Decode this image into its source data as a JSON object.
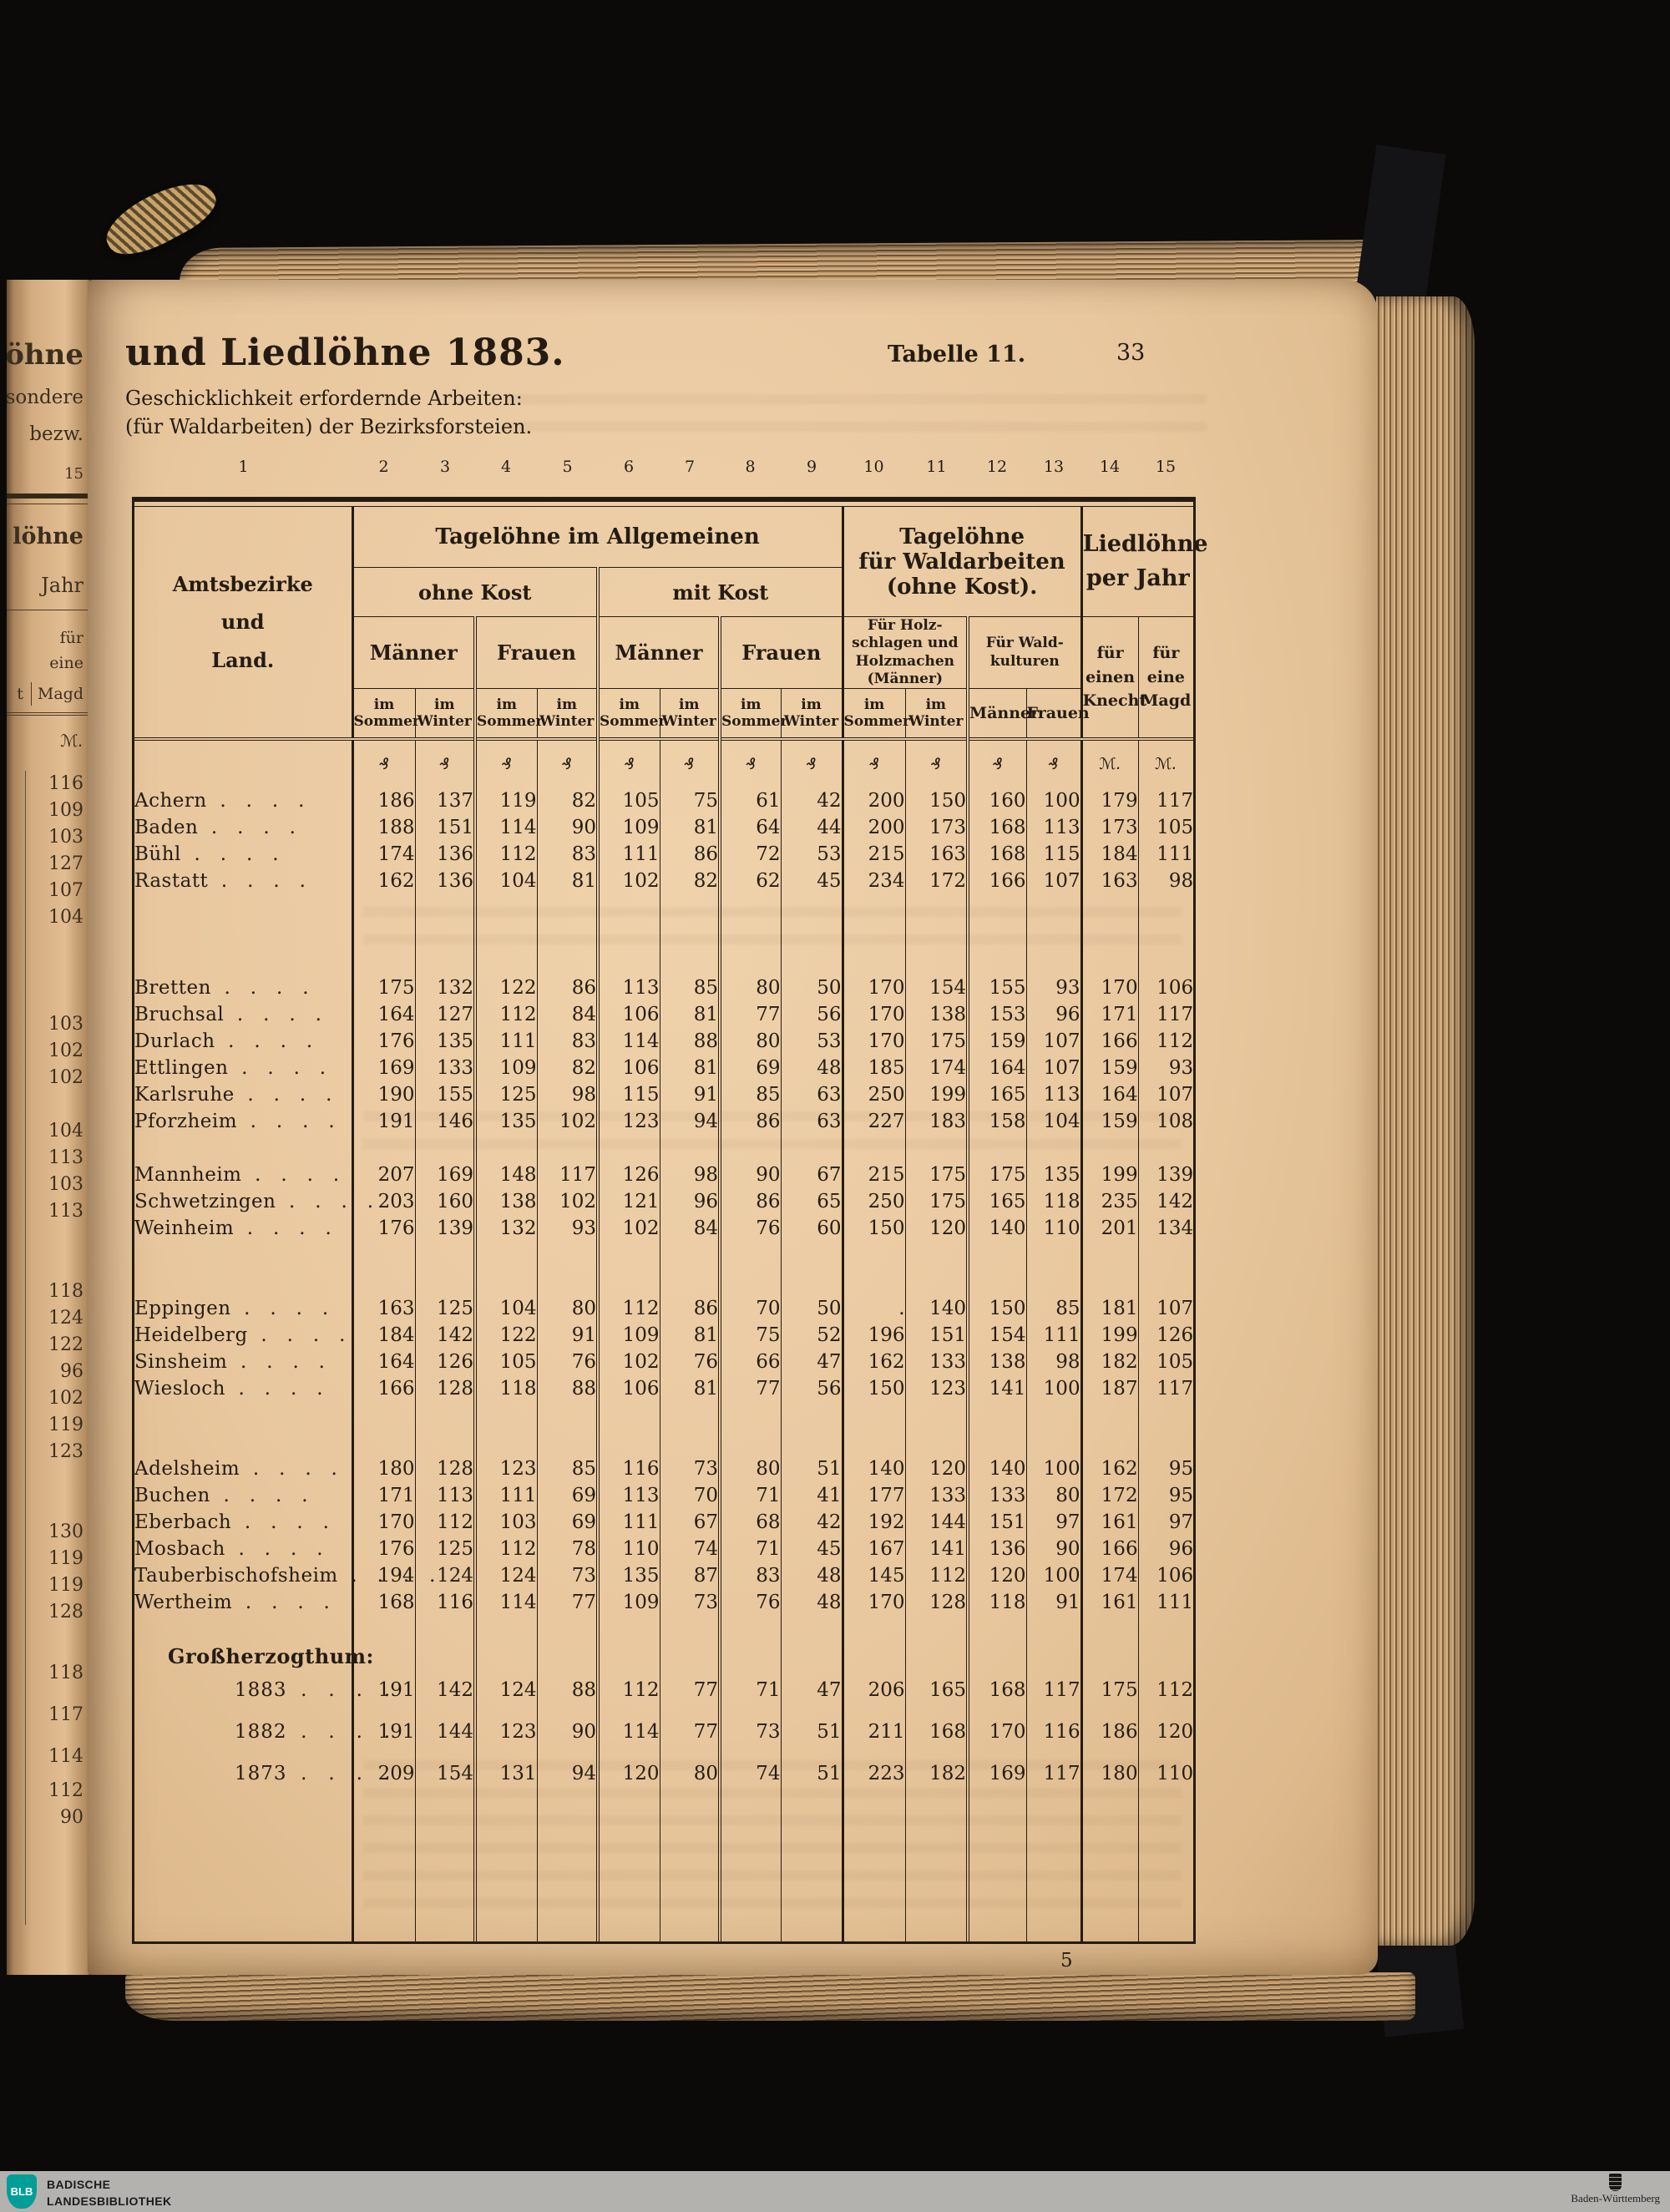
{
  "page": {
    "title": "und Liedlöhne 1883.",
    "subtitle_line1": "Geschicklichkeit erfordernde Arbeiten:",
    "subtitle_line2": "(für Waldarbeiten) der Bezirksforsteien.",
    "table_caption": "Tabelle 11.",
    "page_number": "33",
    "sheet_signature": "5"
  },
  "left_page_fragments": {
    "title_fragment": "elöhne",
    "frag_sondere": "sondere",
    "frag_bezw": "bezw.",
    "col_number": "15",
    "frag_loehne": "löhne",
    "frag_jahr": "Jahr",
    "frag_fuer": "für",
    "frag_eine": "eine",
    "frag_t": "t",
    "frag_magd": "Magd",
    "unit": "ℳ."
  },
  "table": {
    "col_numbers": [
      "1",
      "2",
      "3",
      "4",
      "5",
      "6",
      "7",
      "8",
      "9",
      "10",
      "11",
      "12",
      "13",
      "14",
      "15"
    ],
    "header": {
      "amtsbezirke": "Amtsbezirke\nund\nLand.",
      "tageloehne_allgemein": "Tagelöhne im Allgemeinen",
      "ohne_kost": "ohne Kost",
      "mit_kost": "mit Kost",
      "maenner": "Männer",
      "frauen": "Frauen",
      "im_sommer": "im\nSommer",
      "im_winter": "im\nWinter",
      "tageloehne_wald": "Tagelöhne\nfür Waldarbeiten\n(ohne Kost).",
      "holzschlagen": "Für Holz-\nschlagen und\nHolzmachen\n(Männer)",
      "waldkulturen": "Für Wald-\nkulturen",
      "liedloehne": "Liedlöhne\nper Jahr",
      "knecht": "für\neinen\nKnecht",
      "magd": "für\neine\nMagd"
    },
    "units_row": [
      "",
      "₰",
      "₰",
      "₰",
      "₰",
      "₰",
      "₰",
      "₰",
      "₰",
      "₰",
      "₰",
      "₰",
      "₰",
      "ℳ.",
      "ℳ."
    ],
    "rows": [
      {
        "type": "d",
        "name": "Achern",
        "values": [
          "186",
          "137",
          "119",
          "82",
          "105",
          "75",
          "61",
          "42",
          "200",
          "150",
          "160",
          "100",
          "179",
          "117"
        ],
        "left": "116"
      },
      {
        "type": "d",
        "name": "Baden",
        "values": [
          "188",
          "151",
          "114",
          "90",
          "109",
          "81",
          "64",
          "44",
          "200",
          "173",
          "168",
          "113",
          "173",
          "105"
        ],
        "left": "109"
      },
      {
        "type": "d",
        "name": "Bühl",
        "values": [
          "174",
          "136",
          "112",
          "83",
          "111",
          "86",
          "72",
          "53",
          "215",
          "163",
          "168",
          "115",
          "184",
          "111"
        ],
        "left": "103"
      },
      {
        "type": "d",
        "name": "Rastatt",
        "values": [
          "162",
          "136",
          "104",
          "81",
          "102",
          "82",
          "62",
          "45",
          "234",
          "172",
          "166",
          "107",
          "163",
          "98"
        ],
        "left": "127"
      },
      {
        "type": "blank",
        "left": "107"
      },
      {
        "type": "blank",
        "left": "104"
      },
      {
        "type": "blank",
        "left": ""
      },
      {
        "type": "d",
        "name": "Bretten",
        "values": [
          "175",
          "132",
          "122",
          "86",
          "113",
          "85",
          "80",
          "50",
          "170",
          "154",
          "155",
          "93",
          "170",
          "106"
        ],
        "left": ""
      },
      {
        "type": "d",
        "name": "Bruchsal",
        "values": [
          "164",
          "127",
          "112",
          "84",
          "106",
          "81",
          "77",
          "56",
          "170",
          "138",
          "153",
          "96",
          "171",
          "117"
        ],
        "left": ""
      },
      {
        "type": "d",
        "name": "Durlach",
        "values": [
          "176",
          "135",
          "111",
          "83",
          "114",
          "88",
          "80",
          "53",
          "170",
          "175",
          "159",
          "107",
          "166",
          "112"
        ],
        "left": "103"
      },
      {
        "type": "d",
        "name": "Ettlingen",
        "values": [
          "169",
          "133",
          "109",
          "82",
          "106",
          "81",
          "69",
          "48",
          "185",
          "174",
          "164",
          "107",
          "159",
          "93"
        ],
        "left": "102"
      },
      {
        "type": "d",
        "name": "Karlsruhe",
        "values": [
          "190",
          "155",
          "125",
          "98",
          "115",
          "91",
          "85",
          "63",
          "250",
          "199",
          "165",
          "113",
          "164",
          "107"
        ],
        "left": "102"
      },
      {
        "type": "d",
        "name": "Pforzheim",
        "values": [
          "191",
          "146",
          "135",
          "102",
          "123",
          "94",
          "86",
          "63",
          "227",
          "183",
          "158",
          "104",
          "159",
          "108"
        ],
        "left": ""
      },
      {
        "type": "blank",
        "left": "104"
      },
      {
        "type": "d",
        "name": "Mannheim",
        "values": [
          "207",
          "169",
          "148",
          "117",
          "126",
          "98",
          "90",
          "67",
          "215",
          "175",
          "175",
          "135",
          "199",
          "139"
        ],
        "left": "113"
      },
      {
        "type": "d",
        "name": "Schwetzingen",
        "values": [
          "203",
          "160",
          "138",
          "102",
          "121",
          "96",
          "86",
          "65",
          "250",
          "175",
          "165",
          "118",
          "235",
          "142"
        ],
        "left": "103"
      },
      {
        "type": "d",
        "name": "Weinheim",
        "values": [
          "176",
          "139",
          "132",
          "93",
          "102",
          "84",
          "76",
          "60",
          "150",
          "120",
          "140",
          "110",
          "201",
          "134"
        ],
        "left": "113"
      },
      {
        "type": "blank",
        "left": ""
      },
      {
        "type": "blank",
        "left": ""
      },
      {
        "type": "d",
        "name": "Eppingen",
        "values": [
          "163",
          "125",
          "104",
          "80",
          "112",
          "86",
          "70",
          "50",
          ".",
          "140",
          "150",
          "85",
          "181",
          "107"
        ],
        "left": "118"
      },
      {
        "type": "d",
        "name": "Heidelberg",
        "values": [
          "184",
          "142",
          "122",
          "91",
          "109",
          "81",
          "75",
          "52",
          "196",
          "151",
          "154",
          "111",
          "199",
          "126"
        ],
        "left": "124"
      },
      {
        "type": "d",
        "name": "Sinsheim",
        "values": [
          "164",
          "126",
          "105",
          "76",
          "102",
          "76",
          "66",
          "47",
          "162",
          "133",
          "138",
          "98",
          "182",
          "105"
        ],
        "left": "122"
      },
      {
        "type": "d",
        "name": "Wiesloch",
        "values": [
          "166",
          "128",
          "118",
          "88",
          "106",
          "81",
          "77",
          "56",
          "150",
          "123",
          "141",
          "100",
          "187",
          "117"
        ],
        "left": "96"
      },
      {
        "type": "blank",
        "left": "102"
      },
      {
        "type": "blank",
        "left": "119"
      },
      {
        "type": "d",
        "name": "Adelsheim",
        "values": [
          "180",
          "128",
          "123",
          "85",
          "116",
          "73",
          "80",
          "51",
          "140",
          "120",
          "140",
          "100",
          "162",
          "95"
        ],
        "left": "123"
      },
      {
        "type": "d",
        "name": "Buchen",
        "values": [
          "171",
          "113",
          "111",
          "69",
          "113",
          "70",
          "71",
          "41",
          "177",
          "133",
          "133",
          "80",
          "172",
          "95"
        ],
        "left": ""
      },
      {
        "type": "d",
        "name": "Eberbach",
        "values": [
          "170",
          "112",
          "103",
          "69",
          "111",
          "67",
          "68",
          "42",
          "192",
          "144",
          "151",
          "97",
          "161",
          "97"
        ],
        "left": ""
      },
      {
        "type": "d",
        "name": "Mosbach",
        "values": [
          "176",
          "125",
          "112",
          "78",
          "110",
          "74",
          "71",
          "45",
          "167",
          "141",
          "136",
          "90",
          "166",
          "96"
        ],
        "left": "130"
      },
      {
        "type": "d",
        "name": "Tauberbischofsheim",
        "values": [
          "194",
          "124",
          "124",
          "73",
          "135",
          "87",
          "83",
          "48",
          "145",
          "112",
          "120",
          "100",
          "174",
          "106"
        ],
        "left": "119"
      },
      {
        "type": "d",
        "name": "Wertheim",
        "values": [
          "168",
          "116",
          "114",
          "77",
          "109",
          "73",
          "76",
          "48",
          "170",
          "128",
          "118",
          "91",
          "161",
          "111"
        ],
        "left": "119"
      },
      {
        "type": "blank",
        "left": "128"
      },
      {
        "type": "label",
        "name": "Großherzogthum:",
        "left": ""
      },
      {
        "type": "year",
        "name": "1883",
        "values": [
          "191",
          "142",
          "124",
          "88",
          "112",
          "77",
          "71",
          "47",
          "206",
          "165",
          "168",
          "117",
          "175",
          "112"
        ],
        "left": "118"
      },
      {
        "type": "year",
        "name": "1882",
        "values": [
          "191",
          "144",
          "123",
          "90",
          "114",
          "77",
          "73",
          "51",
          "211",
          "168",
          "170",
          "116",
          "186",
          "120"
        ],
        "left": "117"
      },
      {
        "type": "year",
        "name": "1873",
        "values": [
          "209",
          "154",
          "131",
          "94",
          "120",
          "80",
          "74",
          "51",
          "223",
          "182",
          "169",
          "117",
          "180",
          "110"
        ],
        "left": "114"
      },
      {
        "type": "blank",
        "left": "112"
      },
      {
        "type": "blank",
        "left": "90"
      },
      {
        "type": "pad",
        "left": ""
      }
    ]
  },
  "footer": {
    "library_abbr": "BLB",
    "library_line1": "BADISCHE",
    "library_line2": "LANDESBIBLIOTHEK",
    "state_label": "Baden-Württemberg"
  }
}
